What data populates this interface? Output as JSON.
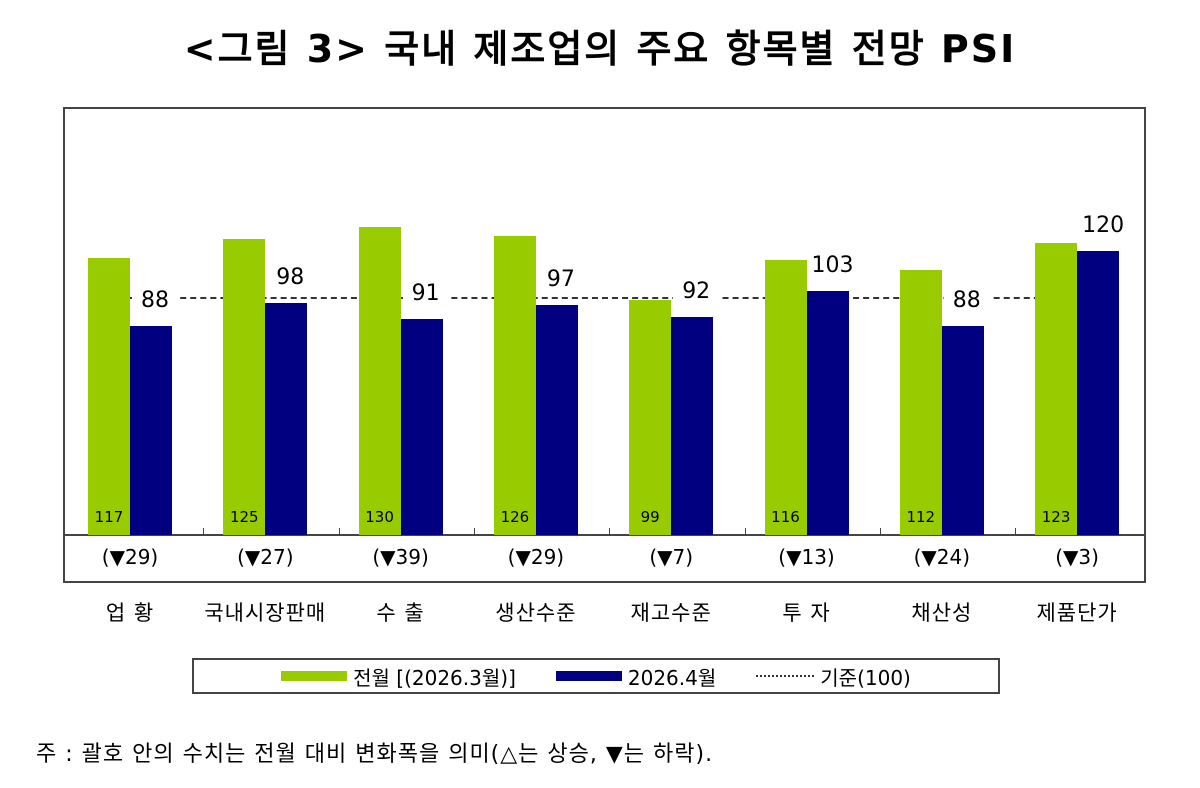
{
  "title": "<그림 3> 국내 제조업의 주요 항목별 전망 PSI",
  "legend": {
    "prev_label": "전월 [(2026.3월)]",
    "curr_label": "2026.4월",
    "ref_label": "기준(100)"
  },
  "note": "주 : 괄호 안의 수치는 전월 대비 변화폭을 의미(△는 상승, ▼는 하락).",
  "colors": {
    "prev": "#99cc00",
    "curr": "#000080",
    "reference": "#333333"
  },
  "chart_data": {
    "type": "bar",
    "title": "<그림 3> 국내 제조업의 주요 항목별 전망 PSI",
    "categories": [
      "업 황",
      "국내시장판매",
      "수 출",
      "생산수준",
      "재고수준",
      "투 자",
      "채산성",
      "제품단가"
    ],
    "series": [
      {
        "name": "전월 [(2026.3월)]",
        "values": [
          117,
          125,
          130,
          126,
          99,
          116,
          112,
          123
        ]
      },
      {
        "name": "2026.4월",
        "values": [
          88,
          98,
          91,
          97,
          92,
          103,
          88,
          120
        ]
      }
    ],
    "reference_line": {
      "name": "기준(100)",
      "value": 100
    },
    "changes": [
      "(▼29)",
      "(▼27)",
      "(▼39)",
      "(▼29)",
      "(▼7)",
      "(▼13)",
      "(▼24)",
      "(▼3)"
    ],
    "xlabel": "",
    "ylabel": "",
    "ylim": [
      0,
      140
    ],
    "grid": false,
    "legend_position": "bottom"
  }
}
